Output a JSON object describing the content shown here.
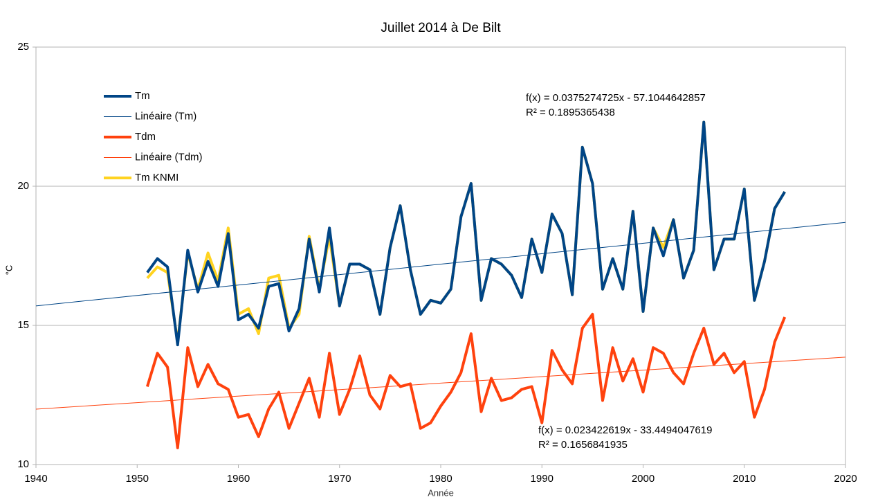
{
  "chart_data": {
    "type": "line",
    "title": "Juillet 2014 à De Bilt",
    "xlabel": "Année",
    "ylabel": "°C",
    "x": [
      1951,
      1952,
      1953,
      1954,
      1955,
      1956,
      1957,
      1958,
      1959,
      1960,
      1961,
      1962,
      1963,
      1964,
      1965,
      1966,
      1967,
      1968,
      1969,
      1970,
      1971,
      1972,
      1973,
      1974,
      1975,
      1976,
      1977,
      1978,
      1979,
      1980,
      1981,
      1982,
      1983,
      1984,
      1985,
      1986,
      1987,
      1988,
      1989,
      1990,
      1991,
      1992,
      1993,
      1994,
      1995,
      1996,
      1997,
      1998,
      1999,
      2000,
      2001,
      2002,
      2003,
      2004,
      2005,
      2006,
      2007,
      2008,
      2009,
      2010,
      2011,
      2012,
      2013,
      2014
    ],
    "series": [
      {
        "name": "Tm",
        "color": "#004586",
        "values": [
          16.9,
          17.4,
          17.1,
          14.3,
          17.7,
          16.2,
          17.3,
          16.4,
          18.3,
          15.2,
          15.4,
          14.9,
          16.4,
          16.5,
          14.8,
          15.6,
          18.1,
          16.2,
          18.5,
          15.7,
          17.2,
          17.2,
          17.0,
          15.4,
          17.8,
          19.3,
          17.0,
          15.4,
          15.9,
          15.8,
          16.3,
          18.9,
          20.1,
          15.9,
          17.4,
          17.2,
          16.8,
          16.0,
          18.1,
          16.9,
          19.0,
          18.3,
          16.1,
          21.4,
          20.1,
          16.3,
          17.4,
          16.3,
          19.1,
          15.5,
          18.5,
          17.5,
          18.8,
          16.7,
          17.7,
          22.3,
          17.0,
          18.1,
          18.1,
          19.9,
          15.9,
          17.3,
          19.2,
          19.8
        ]
      },
      {
        "name": "Linéaire (Tm)",
        "color": "#004586",
        "x": [
          1940,
          2020
        ],
        "values": [
          15.7,
          18.7
        ]
      },
      {
        "name": "Tdm",
        "color": "#ff420e",
        "values": [
          12.8,
          14.0,
          13.5,
          10.6,
          14.2,
          12.8,
          13.6,
          12.9,
          12.7,
          11.7,
          11.8,
          11.0,
          12.0,
          12.6,
          11.3,
          12.2,
          13.1,
          11.7,
          14.0,
          11.8,
          12.7,
          13.9,
          12.5,
          12.0,
          13.2,
          12.8,
          12.9,
          11.3,
          11.5,
          12.1,
          12.6,
          13.3,
          14.7,
          11.9,
          13.1,
          12.3,
          12.4,
          12.7,
          12.8,
          11.5,
          14.1,
          13.4,
          12.9,
          14.9,
          15.4,
          12.3,
          14.2,
          13.0,
          13.8,
          12.6,
          14.2,
          14.0,
          13.3,
          12.9,
          14.0,
          14.9,
          13.6,
          14.0,
          13.3,
          13.7,
          11.7,
          12.7,
          14.4,
          15.3
        ]
      },
      {
        "name": "Linéaire (Tdm)",
        "color": "#ff420e",
        "x": [
          1940,
          2020
        ],
        "values": [
          11.99,
          13.86
        ]
      },
      {
        "name": "Tm KNMI",
        "color": "#ffd320",
        "values": [
          16.7,
          17.1,
          16.9,
          14.4,
          17.6,
          16.3,
          17.6,
          16.6,
          18.5,
          15.4,
          15.6,
          14.7,
          16.7,
          16.8,
          14.9,
          15.4,
          18.2,
          16.3,
          18.2,
          15.7,
          17.2,
          17.2,
          17.0,
          15.4,
          17.8,
          19.3,
          17.0,
          15.4,
          15.9,
          15.8,
          16.3,
          18.9,
          20.1,
          15.9,
          17.4,
          17.2,
          16.8,
          16.0,
          18.1,
          16.9,
          19.0,
          18.3,
          16.1,
          21.4,
          20.1,
          16.3,
          17.4,
          16.3,
          19.1,
          15.5,
          18.5,
          17.8,
          18.8,
          16.7,
          17.7,
          22.3,
          17.0,
          18.1,
          18.1,
          19.9,
          15.9,
          17.3,
          19.2,
          19.8
        ]
      }
    ],
    "annotations": [
      "f(x) = 0.0375274725x - 57.1044642857",
      "R² = 0.1895365438",
      "f(x) = 0.023422619x - 33.4494047619",
      "R² = 0.1656841935"
    ],
    "xlim": [
      1940,
      2020
    ],
    "xticks": [
      1940,
      1950,
      1960,
      1970,
      1980,
      1990,
      2000,
      2010,
      2020
    ],
    "ylim": [
      10,
      25
    ],
    "yticks": [
      10,
      15,
      20,
      25
    ],
    "grid": true,
    "legend": "upper left"
  }
}
